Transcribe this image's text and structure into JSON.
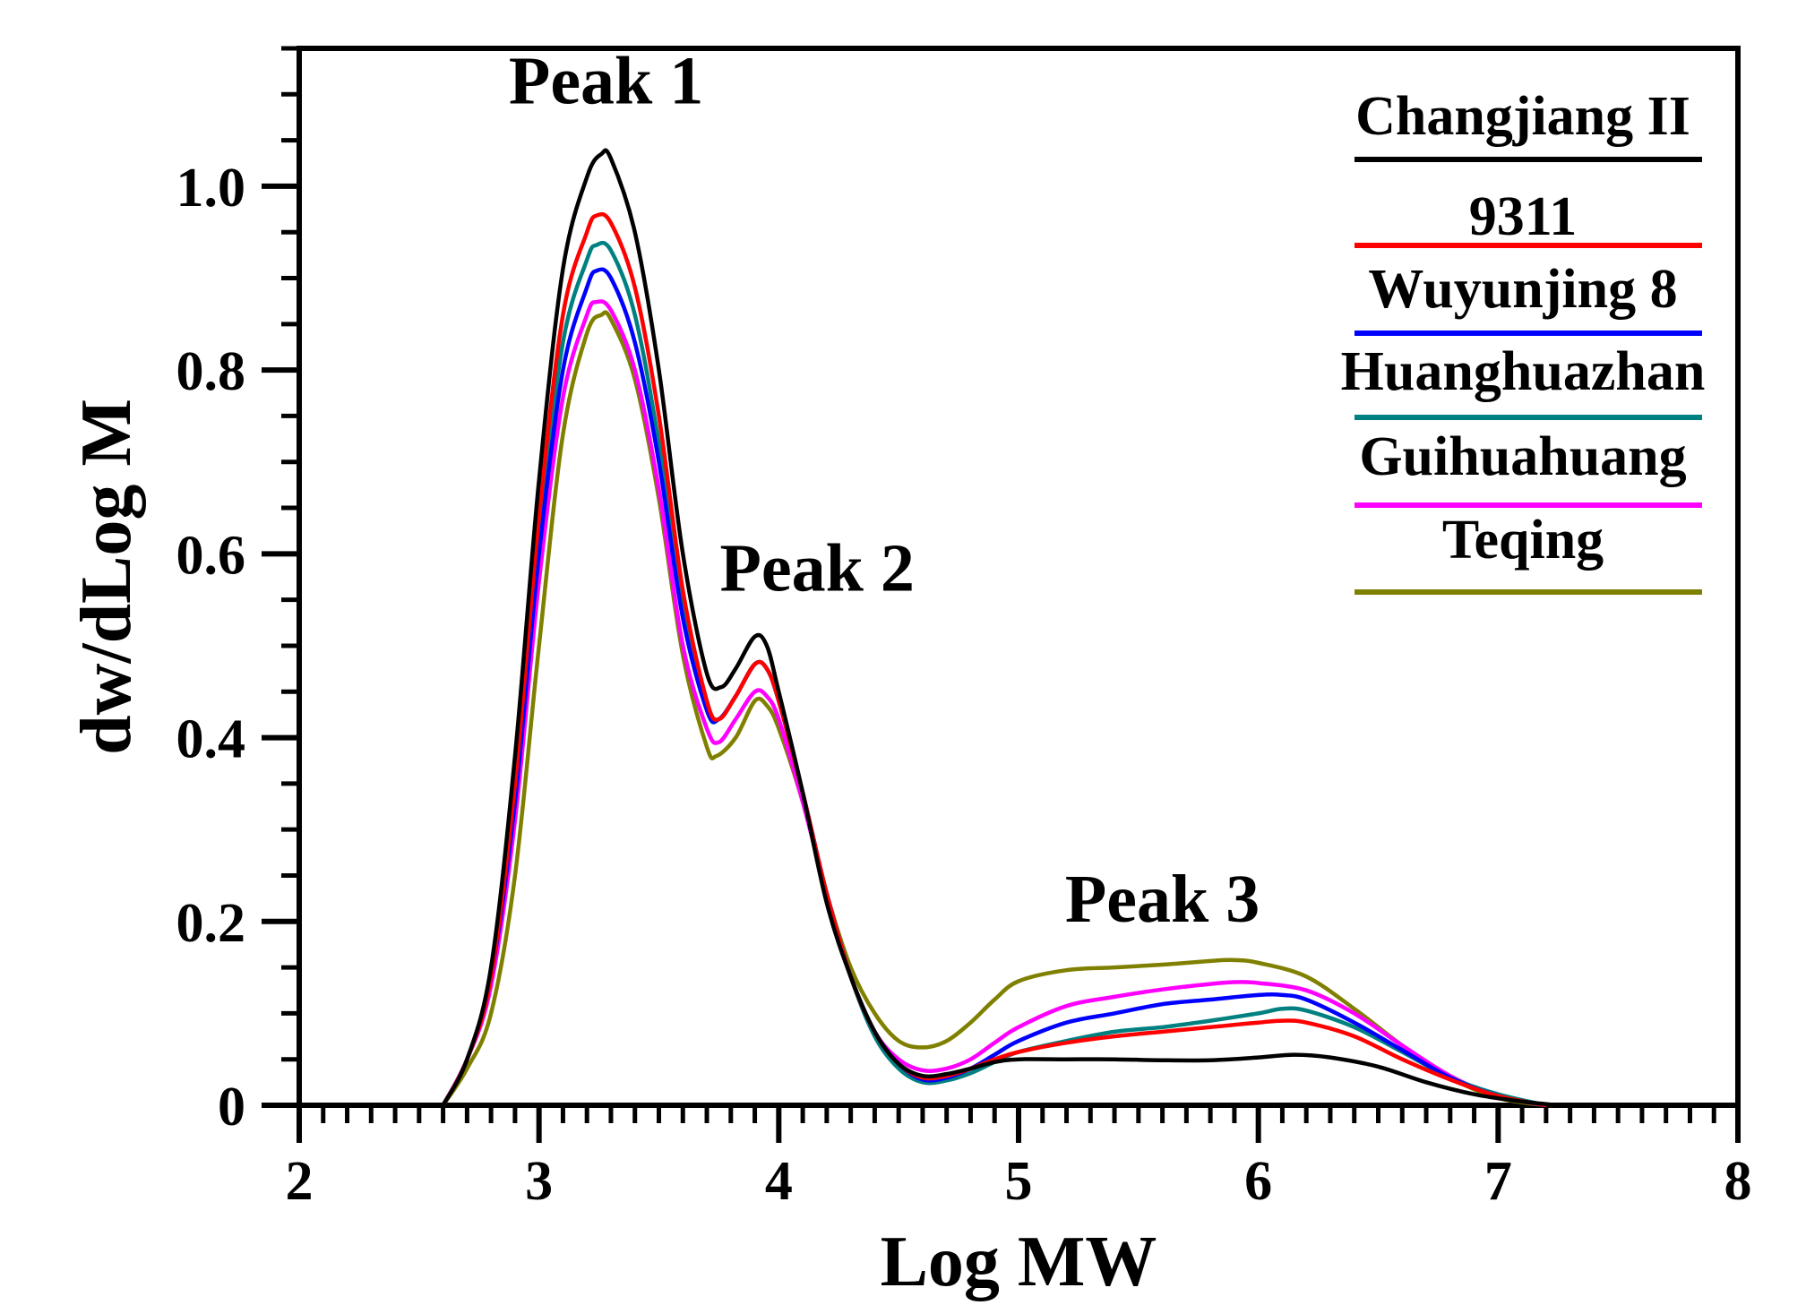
{
  "chart_data": {
    "type": "line",
    "title": "",
    "xlabel": "Log MW",
    "ylabel": "dw/dLog M",
    "xlim": [
      2,
      8
    ],
    "ylim": [
      0,
      1.15
    ],
    "xticks": [
      2,
      3,
      4,
      5,
      6,
      7,
      8
    ],
    "xtick_labels": [
      "2",
      "3",
      "4",
      "5",
      "6",
      "7",
      "8"
    ],
    "yticks": [
      0,
      0.2,
      0.4,
      0.6,
      0.8,
      1.0
    ],
    "ytick_labels": [
      "0",
      "0.2",
      "0.4",
      "0.6",
      "0.8",
      "1.0"
    ],
    "grid": false,
    "legend_position": "top-right",
    "annotations": [
      {
        "text": "Peak 1",
        "x": 3.28,
        "y": 1.09
      },
      {
        "text": "Peak 2",
        "x": 4.16,
        "y": 0.56
      },
      {
        "text": "Peak 3",
        "x": 5.6,
        "y": 0.2
      }
    ],
    "series": [
      {
        "name": "Changjiang II",
        "color": "#000000",
        "points": [
          [
            2.6,
            0
          ],
          [
            2.7,
            0.05
          ],
          [
            2.8,
            0.15
          ],
          [
            2.9,
            0.38
          ],
          [
            3.0,
            0.68
          ],
          [
            3.1,
            0.91
          ],
          [
            3.2,
            1.01
          ],
          [
            3.26,
            1.035
          ],
          [
            3.3,
            1.03
          ],
          [
            3.4,
            0.95
          ],
          [
            3.5,
            0.8
          ],
          [
            3.6,
            0.6
          ],
          [
            3.7,
            0.47
          ],
          [
            3.76,
            0.455
          ],
          [
            3.82,
            0.475
          ],
          [
            3.9,
            0.51
          ],
          [
            3.95,
            0.5
          ],
          [
            4.0,
            0.45
          ],
          [
            4.1,
            0.34
          ],
          [
            4.2,
            0.22
          ],
          [
            4.3,
            0.14
          ],
          [
            4.4,
            0.08
          ],
          [
            4.5,
            0.045
          ],
          [
            4.6,
            0.032
          ],
          [
            4.7,
            0.034
          ],
          [
            4.8,
            0.04
          ],
          [
            4.9,
            0.047
          ],
          [
            5.0,
            0.05
          ],
          [
            5.2,
            0.05
          ],
          [
            5.4,
            0.05
          ],
          [
            5.6,
            0.049
          ],
          [
            5.8,
            0.049
          ],
          [
            6.0,
            0.052
          ],
          [
            6.15,
            0.055
          ],
          [
            6.3,
            0.052
          ],
          [
            6.5,
            0.042
          ],
          [
            6.7,
            0.025
          ],
          [
            6.9,
            0.012
          ],
          [
            7.1,
            0.004
          ],
          [
            7.25,
            0.0
          ]
        ]
      },
      {
        "name": "9311",
        "color": "#ff0000",
        "points": [
          [
            2.6,
            0
          ],
          [
            2.7,
            0.05
          ],
          [
            2.8,
            0.14
          ],
          [
            2.9,
            0.35
          ],
          [
            3.0,
            0.64
          ],
          [
            3.1,
            0.86
          ],
          [
            3.2,
            0.95
          ],
          [
            3.24,
            0.968
          ],
          [
            3.3,
            0.96
          ],
          [
            3.4,
            0.89
          ],
          [
            3.5,
            0.75
          ],
          [
            3.6,
            0.56
          ],
          [
            3.7,
            0.44
          ],
          [
            3.75,
            0.42
          ],
          [
            3.82,
            0.445
          ],
          [
            3.9,
            0.48
          ],
          [
            3.95,
            0.475
          ],
          [
            4.0,
            0.44
          ],
          [
            4.1,
            0.34
          ],
          [
            4.2,
            0.23
          ],
          [
            4.3,
            0.14
          ],
          [
            4.4,
            0.08
          ],
          [
            4.5,
            0.045
          ],
          [
            4.6,
            0.03
          ],
          [
            4.7,
            0.032
          ],
          [
            4.8,
            0.04
          ],
          [
            4.9,
            0.05
          ],
          [
            5.0,
            0.058
          ],
          [
            5.2,
            0.068
          ],
          [
            5.4,
            0.075
          ],
          [
            5.6,
            0.08
          ],
          [
            5.8,
            0.085
          ],
          [
            6.0,
            0.09
          ],
          [
            6.1,
            0.092
          ],
          [
            6.2,
            0.09
          ],
          [
            6.4,
            0.075
          ],
          [
            6.6,
            0.05
          ],
          [
            6.8,
            0.028
          ],
          [
            7.0,
            0.01
          ],
          [
            7.2,
            0.0
          ]
        ]
      },
      {
        "name": "Wuyunjing 8",
        "color": "#0000ff",
        "points": [
          [
            2.6,
            0
          ],
          [
            2.7,
            0.05
          ],
          [
            2.8,
            0.14
          ],
          [
            2.9,
            0.33
          ],
          [
            3.0,
            0.6
          ],
          [
            3.1,
            0.8
          ],
          [
            3.2,
            0.89
          ],
          [
            3.24,
            0.908
          ],
          [
            3.3,
            0.9
          ],
          [
            3.4,
            0.83
          ],
          [
            3.5,
            0.7
          ],
          [
            3.6,
            0.53
          ],
          [
            3.7,
            0.43
          ],
          [
            3.75,
            0.42
          ],
          [
            3.82,
            0.445
          ],
          [
            3.9,
            0.48
          ],
          [
            3.95,
            0.475
          ],
          [
            4.0,
            0.44
          ],
          [
            4.1,
            0.34
          ],
          [
            4.2,
            0.23
          ],
          [
            4.3,
            0.14
          ],
          [
            4.4,
            0.08
          ],
          [
            4.5,
            0.045
          ],
          [
            4.6,
            0.028
          ],
          [
            4.7,
            0.03
          ],
          [
            4.8,
            0.04
          ],
          [
            4.9,
            0.055
          ],
          [
            5.0,
            0.07
          ],
          [
            5.2,
            0.09
          ],
          [
            5.4,
            0.1
          ],
          [
            5.6,
            0.11
          ],
          [
            5.8,
            0.115
          ],
          [
            6.0,
            0.12
          ],
          [
            6.1,
            0.12
          ],
          [
            6.2,
            0.115
          ],
          [
            6.4,
            0.09
          ],
          [
            6.6,
            0.06
          ],
          [
            6.8,
            0.03
          ],
          [
            7.0,
            0.01
          ],
          [
            7.2,
            0.0
          ]
        ]
      },
      {
        "name": "Huanghuazhan",
        "color": "#008080",
        "points": [
          [
            2.6,
            0
          ],
          [
            2.7,
            0.05
          ],
          [
            2.8,
            0.14
          ],
          [
            2.9,
            0.34
          ],
          [
            3.0,
            0.62
          ],
          [
            3.1,
            0.83
          ],
          [
            3.2,
            0.92
          ],
          [
            3.24,
            0.936
          ],
          [
            3.3,
            0.93
          ],
          [
            3.4,
            0.86
          ],
          [
            3.5,
            0.72
          ],
          [
            3.6,
            0.54
          ],
          [
            3.7,
            0.43
          ],
          [
            3.75,
            0.42
          ],
          [
            3.82,
            0.445
          ],
          [
            3.9,
            0.48
          ],
          [
            3.95,
            0.475
          ],
          [
            4.0,
            0.44
          ],
          [
            4.1,
            0.34
          ],
          [
            4.2,
            0.23
          ],
          [
            4.3,
            0.14
          ],
          [
            4.4,
            0.075
          ],
          [
            4.5,
            0.04
          ],
          [
            4.6,
            0.025
          ],
          [
            4.7,
            0.027
          ],
          [
            4.8,
            0.035
          ],
          [
            4.9,
            0.047
          ],
          [
            5.0,
            0.058
          ],
          [
            5.2,
            0.07
          ],
          [
            5.4,
            0.08
          ],
          [
            5.6,
            0.085
          ],
          [
            5.8,
            0.092
          ],
          [
            6.0,
            0.1
          ],
          [
            6.1,
            0.105
          ],
          [
            6.2,
            0.103
          ],
          [
            6.4,
            0.085
          ],
          [
            6.6,
            0.058
          ],
          [
            6.8,
            0.03
          ],
          [
            7.0,
            0.012
          ],
          [
            7.2,
            0.0
          ]
        ]
      },
      {
        "name": "Guihuahuang",
        "color": "#ff00ff",
        "points": [
          [
            2.6,
            0
          ],
          [
            2.7,
            0.05
          ],
          [
            2.8,
            0.13
          ],
          [
            2.9,
            0.31
          ],
          [
            3.0,
            0.57
          ],
          [
            3.1,
            0.77
          ],
          [
            3.2,
            0.86
          ],
          [
            3.24,
            0.874
          ],
          [
            3.3,
            0.865
          ],
          [
            3.4,
            0.8
          ],
          [
            3.5,
            0.67
          ],
          [
            3.6,
            0.5
          ],
          [
            3.7,
            0.41
          ],
          [
            3.75,
            0.395
          ],
          [
            3.82,
            0.42
          ],
          [
            3.9,
            0.45
          ],
          [
            3.95,
            0.445
          ],
          [
            4.0,
            0.42
          ],
          [
            4.1,
            0.33
          ],
          [
            4.2,
            0.23
          ],
          [
            4.3,
            0.14
          ],
          [
            4.4,
            0.08
          ],
          [
            4.5,
            0.05
          ],
          [
            4.6,
            0.038
          ],
          [
            4.7,
            0.04
          ],
          [
            4.8,
            0.05
          ],
          [
            4.9,
            0.068
          ],
          [
            5.0,
            0.085
          ],
          [
            5.2,
            0.108
          ],
          [
            5.4,
            0.118
          ],
          [
            5.6,
            0.126
          ],
          [
            5.8,
            0.132
          ],
          [
            5.9,
            0.134
          ],
          [
            6.0,
            0.133
          ],
          [
            6.2,
            0.125
          ],
          [
            6.4,
            0.1
          ],
          [
            6.6,
            0.065
          ],
          [
            6.8,
            0.032
          ],
          [
            7.0,
            0.01
          ],
          [
            7.2,
            0.0
          ]
        ]
      },
      {
        "name": "Teqing",
        "color": "#808000",
        "points": [
          [
            2.6,
            0
          ],
          [
            2.7,
            0.04
          ],
          [
            2.8,
            0.1
          ],
          [
            2.9,
            0.25
          ],
          [
            3.0,
            0.5
          ],
          [
            3.1,
            0.73
          ],
          [
            3.2,
            0.84
          ],
          [
            3.26,
            0.86
          ],
          [
            3.3,
            0.855
          ],
          [
            3.4,
            0.79
          ],
          [
            3.5,
            0.66
          ],
          [
            3.6,
            0.49
          ],
          [
            3.7,
            0.39
          ],
          [
            3.74,
            0.38
          ],
          [
            3.82,
            0.4
          ],
          [
            3.9,
            0.44
          ],
          [
            3.95,
            0.435
          ],
          [
            4.0,
            0.41
          ],
          [
            4.1,
            0.33
          ],
          [
            4.2,
            0.23
          ],
          [
            4.3,
            0.15
          ],
          [
            4.4,
            0.1
          ],
          [
            4.5,
            0.07
          ],
          [
            4.6,
            0.063
          ],
          [
            4.7,
            0.07
          ],
          [
            4.8,
            0.09
          ],
          [
            4.9,
            0.115
          ],
          [
            5.0,
            0.135
          ],
          [
            5.2,
            0.147
          ],
          [
            5.4,
            0.15
          ],
          [
            5.6,
            0.153
          ],
          [
            5.8,
            0.157
          ],
          [
            5.9,
            0.158
          ],
          [
            6.0,
            0.155
          ],
          [
            6.2,
            0.14
          ],
          [
            6.4,
            0.105
          ],
          [
            6.6,
            0.065
          ],
          [
            6.8,
            0.03
          ],
          [
            7.0,
            0.008
          ],
          [
            7.2,
            0.0
          ]
        ]
      }
    ]
  }
}
